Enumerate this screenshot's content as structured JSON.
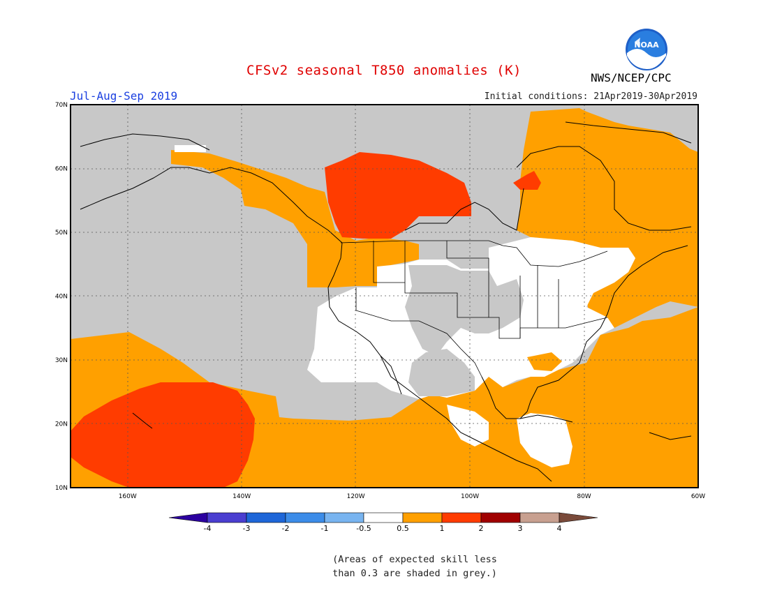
{
  "header": {
    "title": "CFSv2 seasonal T850 anomalies (K)",
    "org": "NWS/NCEP/CPC",
    "season": "Jul-Aug-Sep 2019",
    "initial_conditions": "Initial conditions: 21Apr2019-30Apr2019"
  },
  "logo": {
    "text": "NOAA",
    "color": "#1e7bd6"
  },
  "map": {
    "extent": {
      "lon_min": -170,
      "lon_max": -60,
      "lat_min": 10,
      "lat_max": 70
    },
    "lat_labels": [
      "70N",
      "60N",
      "50N",
      "40N",
      "30N",
      "20N",
      "10N"
    ],
    "lon_labels": [
      "160W",
      "140W",
      "120W",
      "100W",
      "80W",
      "60W"
    ],
    "skill_color": "#c8c8c8",
    "colors": {
      "grey": "#c8c8c8",
      "white": "#ffffff",
      "orange": "#ffa000",
      "red": "#ff3c00"
    }
  },
  "legend": {
    "tick_labels": [
      "-4",
      "-3",
      "-2",
      "-1",
      "-0.5",
      "0.5",
      "1",
      "2",
      "3",
      "4"
    ],
    "colors": [
      "#2c00a0",
      "#4a3ed0",
      "#1e66d8",
      "#3c8ce8",
      "#78b4f0",
      "#ffffff",
      "#ffa000",
      "#ff3c00",
      "#a00000",
      "#c8a090",
      "#7a4a3a"
    ]
  },
  "note": {
    "line1": "(Areas of expected skill less",
    "line2": "than 0.3 are shaded in grey.)"
  }
}
